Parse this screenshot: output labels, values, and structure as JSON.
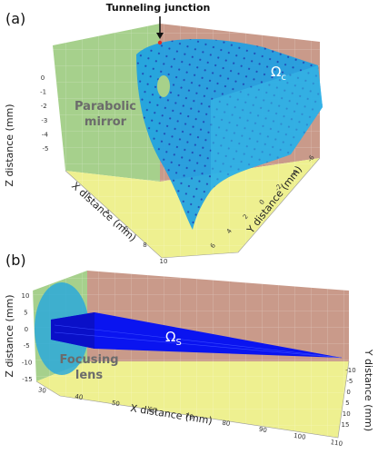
{
  "panel_a": {
    "label": "(a)",
    "tunneling_label": "Tunneling junction",
    "mirror_label_line1": "Parabolic",
    "mirror_label_line2": "mirror",
    "omega_symbol": "Ω",
    "omega_subscript": "c",
    "z_axis_title": "Z distance (mm)",
    "x_axis_title": "X distance (mm)",
    "y_axis_title": "Y distance (mm)",
    "z_ticks": [
      "0",
      "-1",
      "-2",
      "-3",
      "-4",
      "-5"
    ],
    "x_ticks": [
      "2",
      "4",
      "6",
      "8",
      "10"
    ],
    "y_ticks": [
      "-6",
      "-4",
      "-2",
      "0",
      "2",
      "4",
      "6"
    ],
    "colors": {
      "left_wall": "#a6d08c",
      "back_wall": "#c99a8a",
      "floor": "#eef090",
      "surface": "#1aa0e6",
      "dots": "#1f3fb0",
      "spot": "#a7d18a"
    }
  },
  "panel_b": {
    "label": "(b)",
    "lens_label_line1": "Focusing",
    "lens_label_line2": "lens",
    "omega_symbol": "Ω",
    "omega_subscript": "S",
    "z_axis_title": "Z distance (mm)",
    "x_axis_title": "X distance (mm)",
    "y_axis_title": "Y distance (mm)",
    "z_ticks": [
      "10",
      "5",
      "0",
      "-5",
      "-10",
      "-15"
    ],
    "x_ticks": [
      "30",
      "40",
      "50",
      "60",
      "70",
      "80",
      "90",
      "100",
      "110"
    ],
    "y_ticks": [
      "-10",
      "-5",
      "0",
      "5",
      "10",
      "15"
    ],
    "colors": {
      "left_wall": "#a6d08c",
      "back_wall": "#c99a8a",
      "floor": "#eef090",
      "beam": "#0a14f0",
      "lens": "#2ba9d9"
    }
  }
}
